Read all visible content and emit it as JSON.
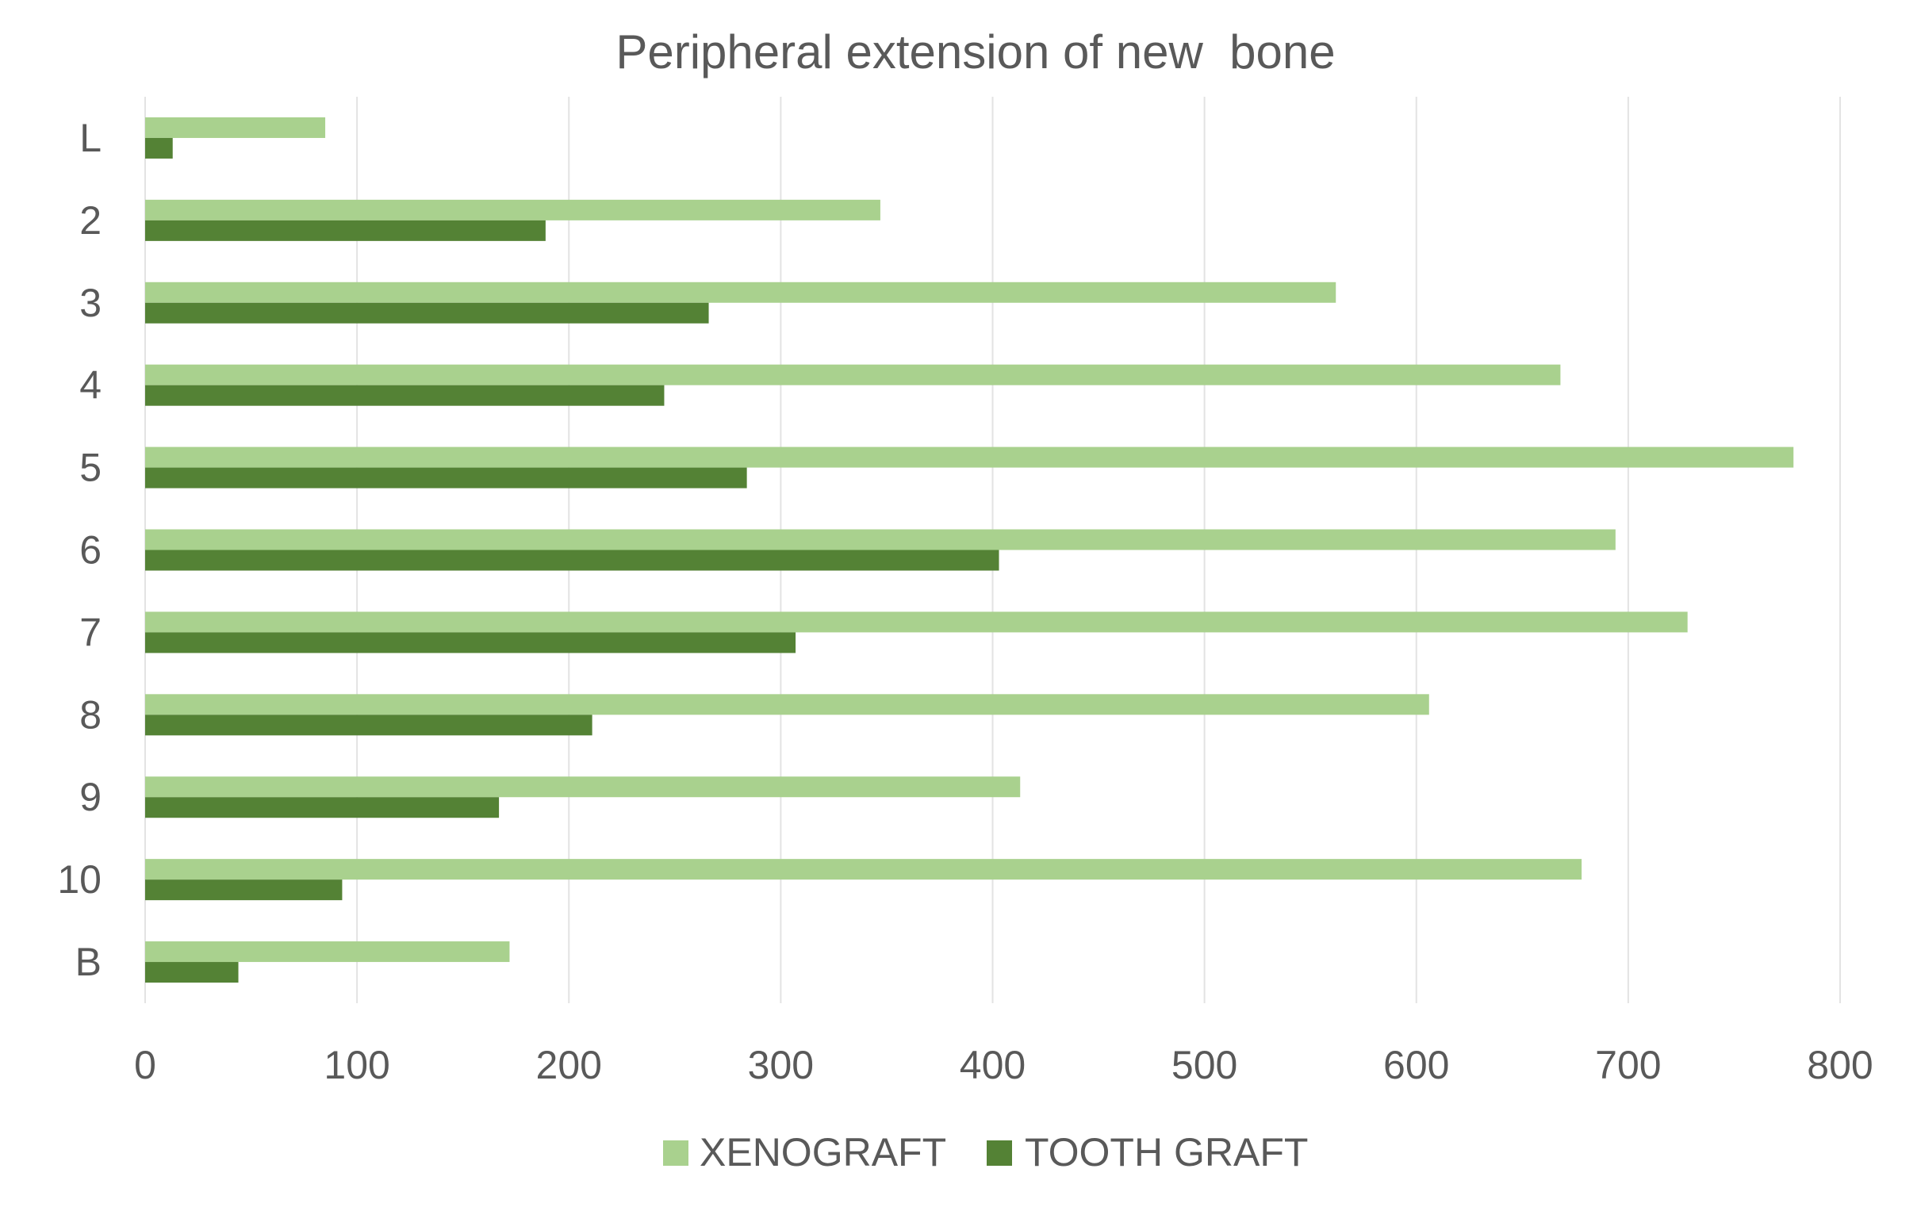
{
  "chart_data": {
    "type": "bar",
    "orientation": "horizontal",
    "title": "Peripheral extension of new  bone",
    "xlabel": "",
    "ylabel": "",
    "categories": [
      "L",
      "2",
      "3",
      "4",
      "5",
      "6",
      "7",
      "8",
      "9",
      "10",
      "B"
    ],
    "series": [
      {
        "name": "XENOGRAFT",
        "color": "#a9d18e",
        "values": [
          85,
          347,
          562,
          668,
          778,
          694,
          728,
          606,
          413,
          678,
          172
        ]
      },
      {
        "name": "TOOTH GRAFT",
        "color": "#548235",
        "values": [
          13,
          189,
          266,
          245,
          284,
          403,
          307,
          211,
          167,
          93,
          44
        ]
      }
    ],
    "xlim": [
      0,
      800
    ],
    "xticks": [
      "0",
      "100",
      "200",
      "300",
      "400",
      "500",
      "600",
      "700",
      "800"
    ],
    "grid": true,
    "legend_position": "bottom"
  }
}
